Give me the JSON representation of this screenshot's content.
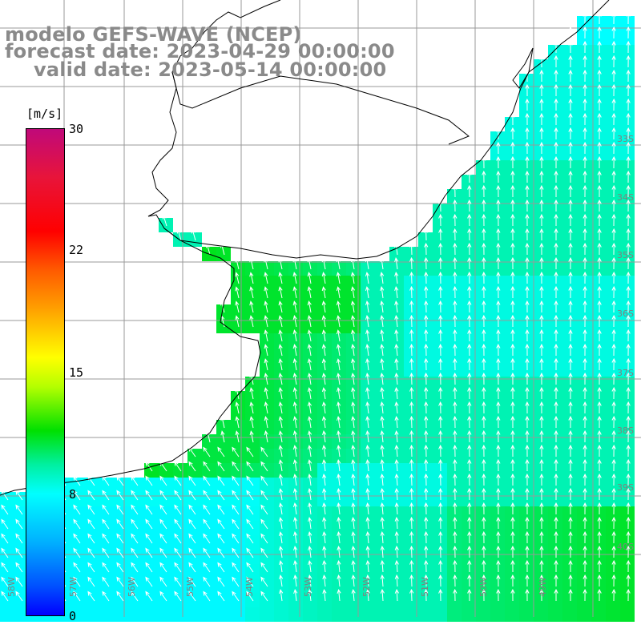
{
  "title": {
    "line1": "modelo GEFS-WAVE (NCEP)",
    "line2": "forecast date: 2023-04-29 00:00:00",
    "line3": "valid date: 2023-05-14 00:00:00"
  },
  "colorbar": {
    "unit": "[m/s]",
    "ticks": [
      {
        "label": "30",
        "value": 30
      },
      {
        "label": "22",
        "value": 22
      },
      {
        "label": "15",
        "value": 15
      },
      {
        "label": "8",
        "value": 8
      },
      {
        "label": "0",
        "value": 0
      }
    ],
    "min": 0,
    "max": 30,
    "colors": [
      "#0000ff",
      "#0050ff",
      "#00b0ff",
      "#00ffff",
      "#00f0a0",
      "#00e000",
      "#b4ff00",
      "#ffff00",
      "#ffa000",
      "#ff5a00",
      "#ff0000",
      "#e8143a",
      "#c0097a"
    ]
  },
  "grid": {
    "lat_labels": [
      "33S",
      "34S",
      "35S",
      "36S",
      "37S",
      "38S",
      "39S",
      "40S"
    ],
    "lon_labels": [
      "58W",
      "57W",
      "56W",
      "55W",
      "54W",
      "53W",
      "52W",
      "51W",
      "50W",
      "49W"
    ]
  },
  "map": {
    "land_color": "#ffffff",
    "coast_color": "#000000",
    "grid_color": "#999999",
    "arrow_color": "#ffffff",
    "arrow_direction": "from south-southwest toward north-northeast",
    "wind_speed_range_mps": [
      7,
      13
    ]
  }
}
